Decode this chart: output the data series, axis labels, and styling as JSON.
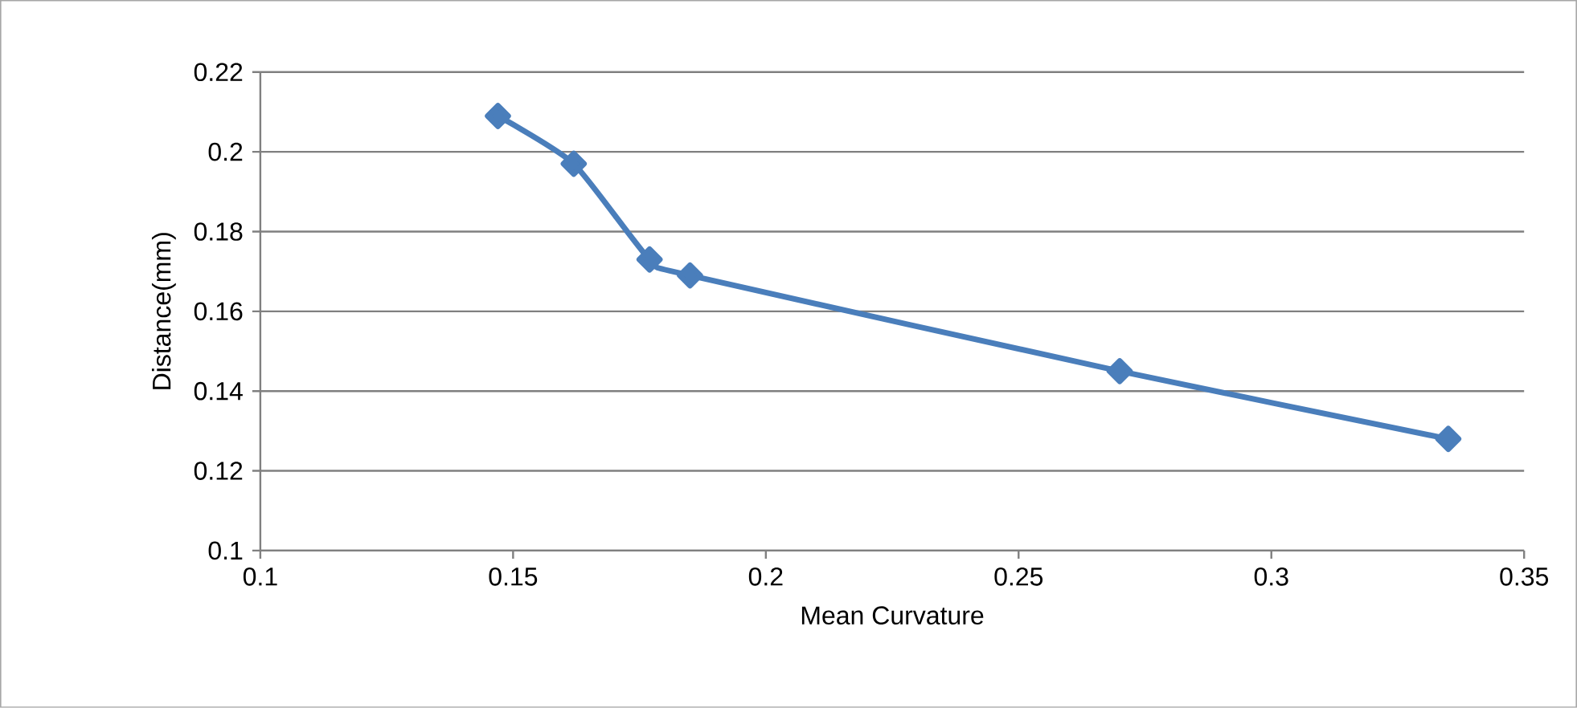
{
  "chart_data": {
    "type": "line",
    "xlabel": "Mean Curvature",
    "ylabel": "Distance(mm)",
    "x": [
      0.147,
      0.162,
      0.177,
      0.185,
      0.27,
      0.335
    ],
    "series": [
      {
        "color": "#4a7ebb",
        "values": [
          0.209,
          0.197,
          0.173,
          0.169,
          0.145,
          0.128
        ]
      }
    ],
    "xlim": [
      0.1,
      0.35
    ],
    "xticks": [
      0.1,
      0.15,
      0.2,
      0.25,
      0.3,
      0.35
    ],
    "ylim": [
      0.1,
      0.22
    ],
    "yticks": [
      0.1,
      0.12,
      0.14,
      0.16,
      0.18,
      0.2,
      0.22
    ],
    "grid": "y",
    "marker": "diamond",
    "line_style": "solid"
  }
}
